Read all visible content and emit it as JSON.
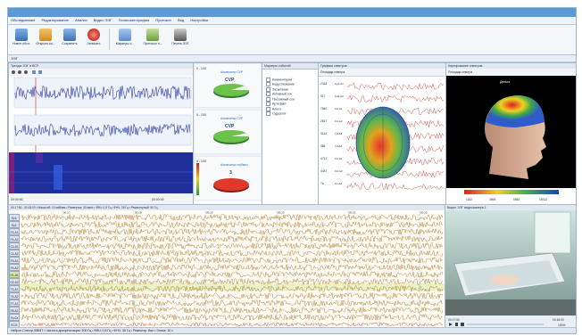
{
  "ribbon": {
    "tabs": [
      "Обследование",
      "Редактирование",
      "Анализ",
      "Видео ЭЭГ",
      "Полисомнография",
      "Протокол",
      "Вид",
      "Настройки"
    ],
    "buttons": [
      {
        "label": "Новое обсл.",
        "icon": "new-exam-icon",
        "color": "#4a7fc1"
      },
      {
        "label": "Открыть ко...",
        "icon": "open-card-icon",
        "color": "#d08a2c"
      },
      {
        "label": "Сохранить",
        "icon": "save-icon",
        "color": "#3f6fb5"
      },
      {
        "label": "Записать",
        "icon": "record-icon",
        "color": "#c0392b"
      },
      {
        "label": "Маркеры с...",
        "icon": "markers-icon",
        "color": "#5a8ed0"
      },
      {
        "label": "Протокол п...",
        "icon": "protocol-icon",
        "color": "#6a9e3a"
      },
      {
        "label": "Печать ЭЭГ",
        "icon": "print-icon",
        "color": "#555555"
      }
    ]
  },
  "docbar": {
    "label": "ЭЭГ"
  },
  "panels": {
    "eeg_trend": {
      "title": "Тренды ЭЭГ и ВСР",
      "timeline_start": "00:00:00",
      "timeline_end": "00:00:00"
    },
    "gauges": {
      "g1": {
        "range": "0 - 100",
        "caption": "Анализатор CVP",
        "label": "CVP"
      },
      "g2": {
        "range": "0 - 100",
        "caption": "Анализатор CVP",
        "label": "CVP"
      },
      "g3": {
        "range": "0 - 100",
        "caption": "Анализатор глубины",
        "label": "3"
      }
    },
    "markers": {
      "title": "Маркеры событий",
      "items": [
        "Комментарий",
        "Бодрствование",
        "Засыпание",
        "Активный сон",
        "Пассивный сон",
        "Артефакт",
        "Апноэ",
        "Судороги"
      ]
    },
    "spectra": {
      "title": "Графика спектров",
      "subtitle": "Площадь спектра",
      "row_labels": [
        "2418",
        "917",
        "7840",
        "2617",
        "3114",
        "384",
        "4713",
        "4447",
        "Ти"
      ],
      "channel_labels": [
        "Fp1-A1",
        "Fp2-A2",
        "C3-A1",
        "C4-A2",
        "T3-A1",
        "T4-A2",
        "O1-A1",
        "O2-A2",
        "Fz-A2"
      ]
    },
    "head_map": {
      "title": "Картирование спектров",
      "subtitle": "Площадь спектра",
      "head_label": "Дельта",
      "scale_labels": [
        "1162",
        "3893",
        "9563",
        "16312"
      ]
    },
    "eeg": {
      "toolbar": "00:17:50 - 00:18:00  •  Масштаб: 10 мкВ/мм  •  Развертка: 30 мм/с  •  ФВЧ: 0,5 Гц  •  ФНЧ: 35 Гц  •  Режекторный: 50 Гц",
      "channels": [
        "Fp1-A1",
        "Fp2-A2",
        "F3-A1",
        "F4-A2",
        "C3-A1",
        "C4-A2",
        "P3-A1",
        "P4-A2",
        "O1-A1",
        "O2-A2",
        "T3-A1",
        "T4-A2",
        "F7-A1",
        "F8-A2",
        "Fz-Cz",
        "ECG"
      ],
      "highlight_channel": 8,
      "time_marks": [
        "00:17",
        "00:18",
        "00:19",
        "00:20",
        "00:21",
        "00:22"
      ]
    },
    "video": {
      "title": "Видео ЭЭГ видеокамера 1",
      "time_left": "00:17:50",
      "time_right": "00:18:00",
      "zoom": "100%"
    }
  },
  "statusbar": {
    "text": "Нейрон-Спектр-5/ВМТ  •  Частота дискретизации: 500 Гц  •  ФВЧ: 0,5 Гц  •  ФНЧ: 35 Гц  •  Режектор: Вкл  •  Эпоха: 10 с"
  }
}
